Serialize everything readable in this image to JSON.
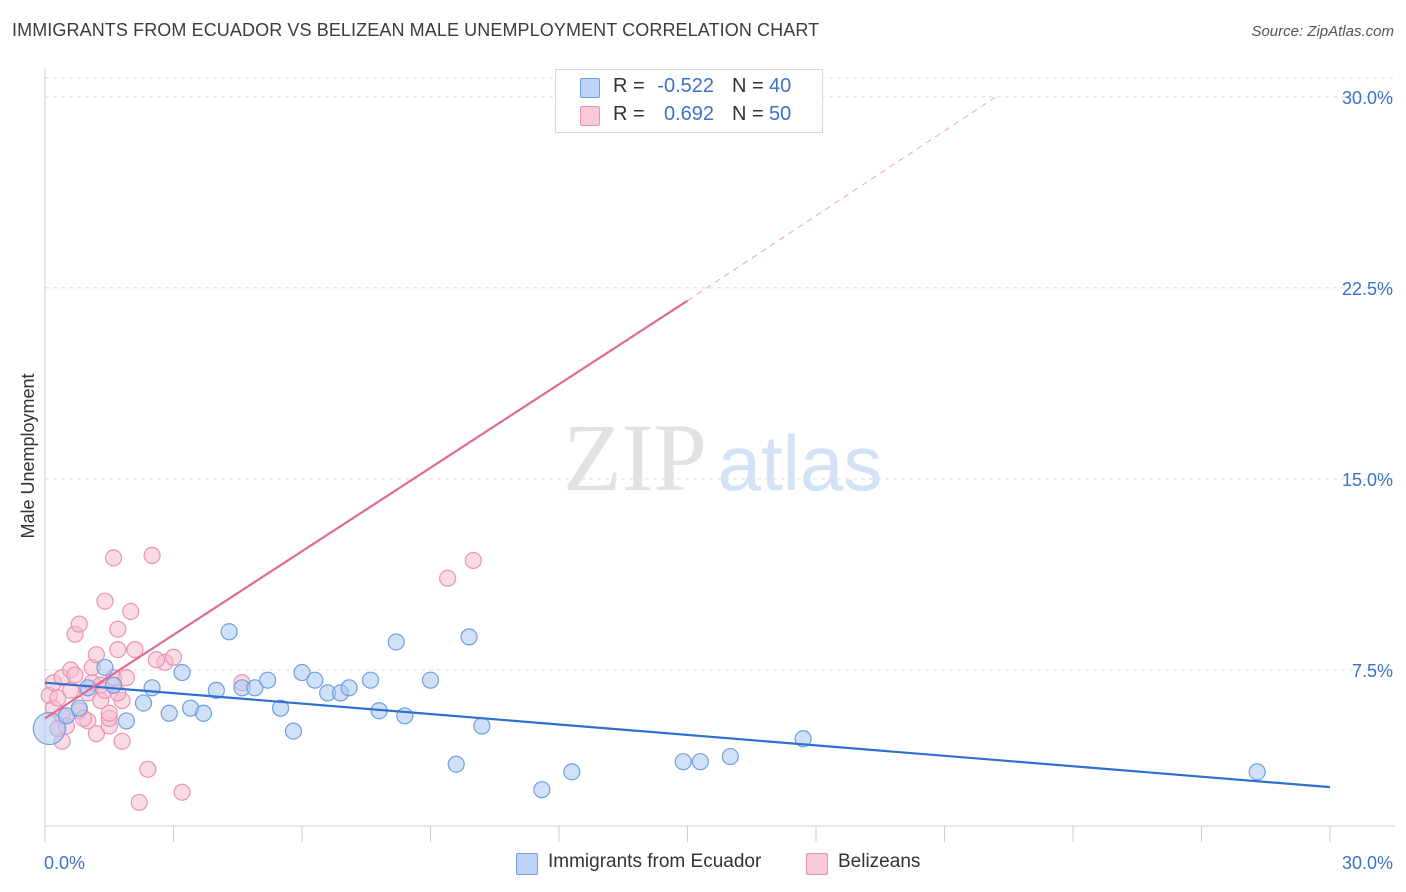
{
  "header": {
    "title": "IMMIGRANTS FROM ECUADOR VS BELIZEAN MALE UNEMPLOYMENT CORRELATION CHART",
    "source": "Source: ZipAtlas.com"
  },
  "watermark": {
    "zip": "ZIP",
    "atlas": "atlas"
  },
  "legend": {
    "rows": [
      {
        "r_label": "R =",
        "r_value": "-0.522",
        "n_label": "N =",
        "n_value": "40"
      },
      {
        "r_label": "R =",
        "r_value": "0.692",
        "n_label": "N =",
        "n_value": "50"
      }
    ]
  },
  "bottom_legend": {
    "items": [
      "Immigrants from Ecuador",
      "Belizeans"
    ]
  },
  "colors": {
    "blue_fill": "#aac8f0",
    "blue_stroke": "#6f9fe0",
    "blue_line": "#2f6fcf",
    "pink_fill": "#f6bcd0",
    "pink_stroke": "#ea93b3",
    "pink_line": "#e06a94",
    "tick_text": "#3d72c9",
    "grid": "#dcdcdc"
  },
  "chart_data": {
    "type": "scatter",
    "title": "IMMIGRANTS FROM ECUADOR VS BELIZEAN MALE UNEMPLOYMENT CORRELATION CHART",
    "xlabel": "",
    "ylabel": "Male Unemployment",
    "xlim": [
      0,
      30
    ],
    "ylim": [
      0,
      31
    ],
    "y_ticks": [
      {
        "value": 7.5,
        "label": "7.5%"
      },
      {
        "value": 15.0,
        "label": "15.0%"
      },
      {
        "value": 22.5,
        "label": "22.5%"
      },
      {
        "value": 30.0,
        "label": "30.0%"
      }
    ],
    "x_tick_labels": [
      {
        "value": 0,
        "label": "0.0%"
      },
      {
        "value": 30,
        "label": "30.0%"
      }
    ],
    "x_minor_ticks": [
      3,
      6,
      9,
      12,
      15,
      18,
      21,
      24,
      27,
      30
    ],
    "grid": true,
    "series": [
      {
        "name": "Immigrants from Ecuador",
        "color": "blue",
        "points": [
          [
            0.1,
            5.2
          ],
          [
            0.5,
            5.7
          ],
          [
            0.8,
            6.0
          ],
          [
            1.0,
            6.8
          ],
          [
            1.4,
            7.6
          ],
          [
            1.6,
            6.9
          ],
          [
            1.9,
            5.5
          ],
          [
            2.3,
            6.2
          ],
          [
            2.5,
            6.8
          ],
          [
            2.9,
            5.8
          ],
          [
            3.2,
            7.4
          ],
          [
            3.4,
            6.0
          ],
          [
            3.7,
            5.8
          ],
          [
            4.0,
            6.7
          ],
          [
            4.3,
            9.0
          ],
          [
            4.6,
            6.8
          ],
          [
            4.9,
            6.8
          ],
          [
            5.2,
            7.1
          ],
          [
            5.5,
            6.0
          ],
          [
            5.8,
            5.1
          ],
          [
            6.0,
            7.4
          ],
          [
            6.3,
            7.1
          ],
          [
            6.6,
            6.6
          ],
          [
            6.9,
            6.6
          ],
          [
            7.1,
            6.8
          ],
          [
            7.6,
            7.1
          ],
          [
            7.8,
            5.9
          ],
          [
            8.2,
            8.6
          ],
          [
            8.4,
            5.7
          ],
          [
            9.0,
            7.1
          ],
          [
            9.6,
            3.8
          ],
          [
            9.9,
            8.8
          ],
          [
            10.2,
            5.3
          ],
          [
            11.6,
            2.8
          ],
          [
            12.3,
            3.5
          ],
          [
            14.9,
            3.9
          ],
          [
            15.3,
            3.9
          ],
          [
            16.0,
            4.1
          ],
          [
            17.7,
            4.8
          ],
          [
            28.3,
            3.5
          ]
        ],
        "trend": {
          "x0": 0,
          "y0": 7.0,
          "x1": 30,
          "y1": 2.9
        }
      },
      {
        "name": "Belizeans",
        "color": "pink",
        "points": [
          [
            0.1,
            6.5
          ],
          [
            0.2,
            6.0
          ],
          [
            0.2,
            7.0
          ],
          [
            0.3,
            6.4
          ],
          [
            0.4,
            5.7
          ],
          [
            0.4,
            7.2
          ],
          [
            0.5,
            5.3
          ],
          [
            0.6,
            6.7
          ],
          [
            0.6,
            7.5
          ],
          [
            0.7,
            7.3
          ],
          [
            0.7,
            8.9
          ],
          [
            0.8,
            5.9
          ],
          [
            0.8,
            9.3
          ],
          [
            1.0,
            6.6
          ],
          [
            1.0,
            5.5
          ],
          [
            1.1,
            7.0
          ],
          [
            1.1,
            7.6
          ],
          [
            1.2,
            8.1
          ],
          [
            1.2,
            5.0
          ],
          [
            1.3,
            6.9
          ],
          [
            1.3,
            6.3
          ],
          [
            1.4,
            6.7
          ],
          [
            1.4,
            10.2
          ],
          [
            1.5,
            5.3
          ],
          [
            1.5,
            5.6
          ],
          [
            1.6,
            7.2
          ],
          [
            1.6,
            11.9
          ],
          [
            1.7,
            9.1
          ],
          [
            1.7,
            8.3
          ],
          [
            1.8,
            6.3
          ],
          [
            1.8,
            4.7
          ],
          [
            1.9,
            7.2
          ],
          [
            2.0,
            9.8
          ],
          [
            2.1,
            8.3
          ],
          [
            2.2,
            2.3
          ],
          [
            2.4,
            3.6
          ],
          [
            2.5,
            12.0
          ],
          [
            2.8,
            7.8
          ],
          [
            3.0,
            8.0
          ],
          [
            3.2,
            2.7
          ],
          [
            4.6,
            7.0
          ],
          [
            9.4,
            11.1
          ],
          [
            10.0,
            11.8
          ],
          [
            12.2,
            30.0
          ],
          [
            0.9,
            5.6
          ],
          [
            1.5,
            5.8
          ],
          [
            0.4,
            4.7
          ],
          [
            1.7,
            6.6
          ],
          [
            0.3,
            5.2
          ],
          [
            2.6,
            7.9
          ]
        ],
        "trend": {
          "x0": 0,
          "y0": 5.6,
          "x1": 15.0,
          "y1": 22.0
        },
        "trend_dashed": {
          "x0": 15.0,
          "y0": 22.0,
          "x1": 22.2,
          "y1": 30.0
        }
      }
    ]
  }
}
